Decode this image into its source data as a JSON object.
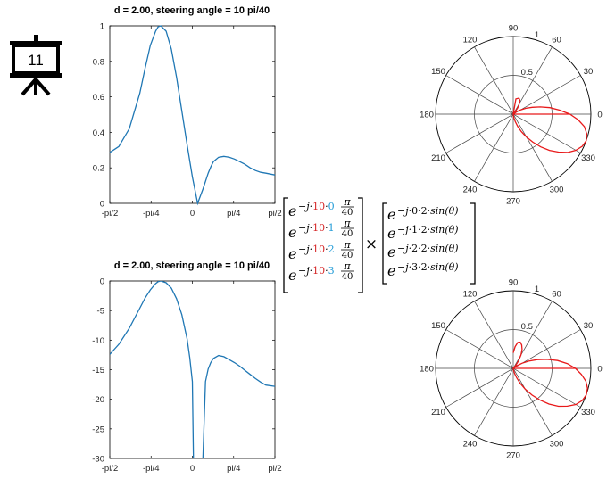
{
  "slide": {
    "number": "11",
    "icon": "presentation-board-icon"
  },
  "colors": {
    "line": "#1f77b4",
    "polar_line": "#e8191a",
    "highlight_red": "#d62728",
    "highlight_blue": "#1f9ad6"
  },
  "chart_data": [
    {
      "type": "line",
      "title": "d = 2.00, steering angle  = 10 pi/40",
      "xlabel": "",
      "ylabel": "",
      "xlim": [
        -1.5708,
        1.5708
      ],
      "ylim": [
        0,
        1
      ],
      "x_tick_labels": [
        "-pi/2",
        "-pi/4",
        "0",
        "pi/4",
        "pi/2"
      ],
      "y_tick_labels": [
        "0",
        "0.2",
        "0.4",
        "0.6",
        "0.8",
        "1"
      ],
      "series": [
        {
          "x": [
            -1.5708,
            -1.4,
            -1.2,
            -1.0,
            -0.9,
            -0.8,
            -0.7,
            -0.65,
            -0.6,
            -0.5,
            -0.4,
            -0.3,
            -0.2,
            -0.1,
            0,
            0.1,
            0.2,
            0.3,
            0.35,
            0.4,
            0.5,
            0.6,
            0.7,
            0.8,
            0.9,
            1.0,
            1.1,
            1.2,
            1.3,
            1.4,
            1.5708
          ],
          "y": [
            0.287,
            0.32,
            0.42,
            0.62,
            0.76,
            0.89,
            0.97,
            0.995,
            1.0,
            0.97,
            0.87,
            0.71,
            0.52,
            0.33,
            0.15,
            0.0,
            0.08,
            0.17,
            0.205,
            0.235,
            0.26,
            0.265,
            0.26,
            0.25,
            0.235,
            0.22,
            0.2,
            0.185,
            0.175,
            0.17,
            0.16
          ]
        }
      ]
    },
    {
      "type": "line",
      "title": "d = 2.00, steering angle  = 10 pi/40",
      "xlabel": "",
      "ylabel": "",
      "xlim": [
        -1.5708,
        1.5708
      ],
      "ylim": [
        -30,
        0
      ],
      "x_tick_labels": [
        "-pi/2",
        "-pi/4",
        "0",
        "pi/4",
        "pi/2"
      ],
      "y_tick_labels": [
        "-30",
        "-25",
        "-20",
        "-15",
        "-10",
        "-5",
        "0"
      ],
      "series": [
        {
          "x": [
            -1.5708,
            -1.4,
            -1.2,
            -1.0,
            -0.9,
            -0.8,
            -0.7,
            -0.65,
            -0.6,
            -0.5,
            -0.4,
            -0.3,
            -0.2,
            -0.1,
            -0.05,
            0,
            0.02,
            0.2,
            0.25,
            0.3,
            0.35,
            0.4,
            0.5,
            0.6,
            0.7,
            0.8,
            0.9,
            1.0,
            1.1,
            1.2,
            1.3,
            1.4,
            1.5708
          ],
          "y": [
            -12.4,
            -10.7,
            -8.0,
            -4.6,
            -2.9,
            -1.5,
            -0.45,
            -0.1,
            0.0,
            -0.3,
            -1.2,
            -3.0,
            -5.7,
            -9.8,
            -13,
            -17,
            -30,
            -30,
            -17,
            -14.9,
            -13.8,
            -13.1,
            -12.6,
            -12.8,
            -13.3,
            -13.8,
            -14.4,
            -15.1,
            -15.8,
            -16.5,
            -17.1,
            -17.6,
            -17.8
          ]
        }
      ]
    },
    {
      "type": "polar",
      "angle_labels": [
        "90",
        "60",
        "30",
        "0",
        "330",
        "300",
        "270",
        "240",
        "210",
        "180",
        "150",
        "120"
      ],
      "radial_labels": [
        "0.5",
        "1"
      ],
      "rlim": [
        0,
        1
      ],
      "series": [
        {
          "theta_deg": [
            0,
            -5,
            -10,
            -15,
            -20,
            -25,
            -30,
            -35,
            -40,
            -45,
            -50,
            -55,
            -60,
            -65,
            -70,
            -75,
            -80,
            -85,
            -90,
            -95,
            -100,
            -180,
            -185,
            -190,
            -200,
            -210,
            -230,
            -250,
            -270,
            -300,
            -330,
            -350,
            -360,
            5,
            10,
            15,
            20,
            25,
            30,
            35,
            40,
            45,
            50,
            55,
            60,
            65,
            70,
            80,
            90
          ],
          "r": [
            0.73,
            0.84,
            0.93,
            0.98,
            1.0,
            0.98,
            0.93,
            0.86,
            0.76,
            0.66,
            0.55,
            0.44,
            0.34,
            0.25,
            0.17,
            0.1,
            0.05,
            0.02,
            0,
            0,
            0,
            0,
            0,
            0,
            0,
            0,
            0,
            0,
            0,
            0,
            0,
            0,
            0.73,
            0.6,
            0.48,
            0.36,
            0.26,
            0.18,
            0.11,
            0.06,
            0.02,
            0,
            0.04,
            0.1,
            0.16,
            0.2,
            0.22,
            0.2,
            0
          ]
        }
      ]
    },
    {
      "type": "polar",
      "angle_labels": [
        "90",
        "60",
        "30",
        "0",
        "330",
        "300",
        "270",
        "240",
        "210",
        "180",
        "150",
        "120"
      ],
      "radial_labels": [
        "0.5",
        "1"
      ],
      "rlim": [
        0,
        1
      ],
      "series": [
        {
          "theta_deg": [
            0,
            -5,
            -10,
            -15,
            -20,
            -25,
            -30,
            -35,
            -40,
            -45,
            -50,
            -55,
            -60,
            -65,
            -70,
            -75,
            -80,
            -85,
            -90,
            0,
            5,
            10,
            15,
            20,
            25,
            30,
            35,
            40,
            45,
            50,
            55,
            60,
            65,
            70,
            75,
            80,
            85,
            90
          ],
          "r": [
            0.8,
            0.88,
            0.95,
            0.99,
            1.0,
            0.98,
            0.93,
            0.85,
            0.76,
            0.65,
            0.53,
            0.42,
            0.31,
            0.21,
            0.13,
            0.07,
            0.03,
            0.01,
            0,
            0.8,
            0.7,
            0.58,
            0.45,
            0.33,
            0.22,
            0.13,
            0.06,
            0.02,
            0.0,
            0.05,
            0.12,
            0.2,
            0.27,
            0.32,
            0.35,
            0.34,
            0.28,
            0.2
          ]
        }
      ]
    }
  ],
  "equation": {
    "steering_rows": [
      {
        "k": "0"
      },
      {
        "k": "1"
      },
      {
        "k": "2"
      },
      {
        "k": "3"
      }
    ],
    "position_rows": [
      {
        "n": "0"
      },
      {
        "n": "1"
      },
      {
        "n": "2"
      },
      {
        "n": "3"
      }
    ],
    "base": "e",
    "neg_j": "−j·",
    "steer_factor": "10",
    "dot": "·",
    "pi": "π",
    "denom": "40",
    "spacing": "2",
    "sin_term": "sin(θ)",
    "times": "×"
  }
}
